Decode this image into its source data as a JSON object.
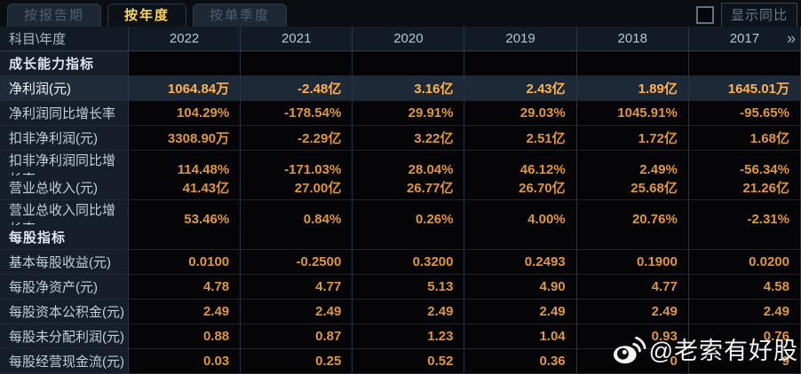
{
  "tabs": {
    "items": [
      {
        "label": "按报告期",
        "active": false
      },
      {
        "label": "按年度",
        "active": true
      },
      {
        "label": "按单季度",
        "active": false
      }
    ]
  },
  "controls": {
    "show_yoy_label": "显示同比",
    "checkbox_checked": false
  },
  "colors": {
    "value_orange": "#e0963f",
    "highlight_orange": "#ffb24e",
    "active_tab_text": "#ffd45a",
    "label_text": "#c3ced9",
    "row_highlight_bg": "#1e2937"
  },
  "table": {
    "corner_header": "科目\\年度",
    "year_columns": [
      "2022",
      "2021",
      "2020",
      "2019",
      "2018",
      "2017"
    ],
    "more_icon": "»",
    "rows": [
      {
        "type": "section",
        "label": "成长能力指标",
        "values": [
          "",
          "",
          "",
          "",
          "",
          ""
        ]
      },
      {
        "type": "highlight",
        "label": "净利润(元)",
        "values": [
          "1064.84万",
          "-2.48亿",
          "3.16亿",
          "2.43亿",
          "1.89亿",
          "1645.01万"
        ]
      },
      {
        "type": "data",
        "label": "净利润同比增长率",
        "values": [
          "104.29%",
          "-178.54%",
          "29.91%",
          "29.03%",
          "1045.91%",
          "-95.65%"
        ]
      },
      {
        "type": "data",
        "label": "扣非净利润(元)",
        "values": [
          "3308.90万",
          "-2.29亿",
          "3.22亿",
          "2.51亿",
          "1.72亿",
          "1.68亿"
        ]
      },
      {
        "type": "data",
        "label": "扣非净利润同比增长率",
        "values": [
          "114.48%",
          "-171.03%",
          "28.04%",
          "46.12%",
          "2.49%",
          "-56.34%"
        ]
      },
      {
        "type": "data",
        "label": "营业总收入(元)",
        "values": [
          "41.43亿",
          "27.00亿",
          "26.77亿",
          "26.70亿",
          "25.68亿",
          "21.26亿"
        ]
      },
      {
        "type": "data",
        "label": "营业总收入同比增长率",
        "values": [
          "53.46%",
          "0.84%",
          "0.26%",
          "4.00%",
          "20.76%",
          "-2.31%"
        ]
      },
      {
        "type": "section",
        "label": "每股指标",
        "values": [
          "",
          "",
          "",
          "",
          "",
          ""
        ]
      },
      {
        "type": "data",
        "label": "基本每股收益(元)",
        "values": [
          "0.0100",
          "-0.2500",
          "0.3200",
          "0.2493",
          "0.1900",
          "0.0200"
        ]
      },
      {
        "type": "data",
        "label": "每股净资产(元)",
        "values": [
          "4.78",
          "4.77",
          "5.13",
          "4.90",
          "4.77",
          "4.58"
        ]
      },
      {
        "type": "data",
        "label": "每股资本公积金(元)",
        "values": [
          "2.49",
          "2.49",
          "2.49",
          "2.49",
          "2.49",
          "2.49"
        ]
      },
      {
        "type": "data",
        "label": "每股未分配利润(元)",
        "values": [
          "0.88",
          "0.87",
          "1.23",
          "1.04",
          "0.93",
          "0.76"
        ]
      },
      {
        "type": "data",
        "label": "每股经营现金流(元)",
        "values": [
          "0.03",
          "0.25",
          "0.52",
          "0.36",
          "0",
          "9"
        ]
      }
    ]
  },
  "watermark": {
    "icon": "weibo-icon",
    "text": "@老索有好股"
  }
}
